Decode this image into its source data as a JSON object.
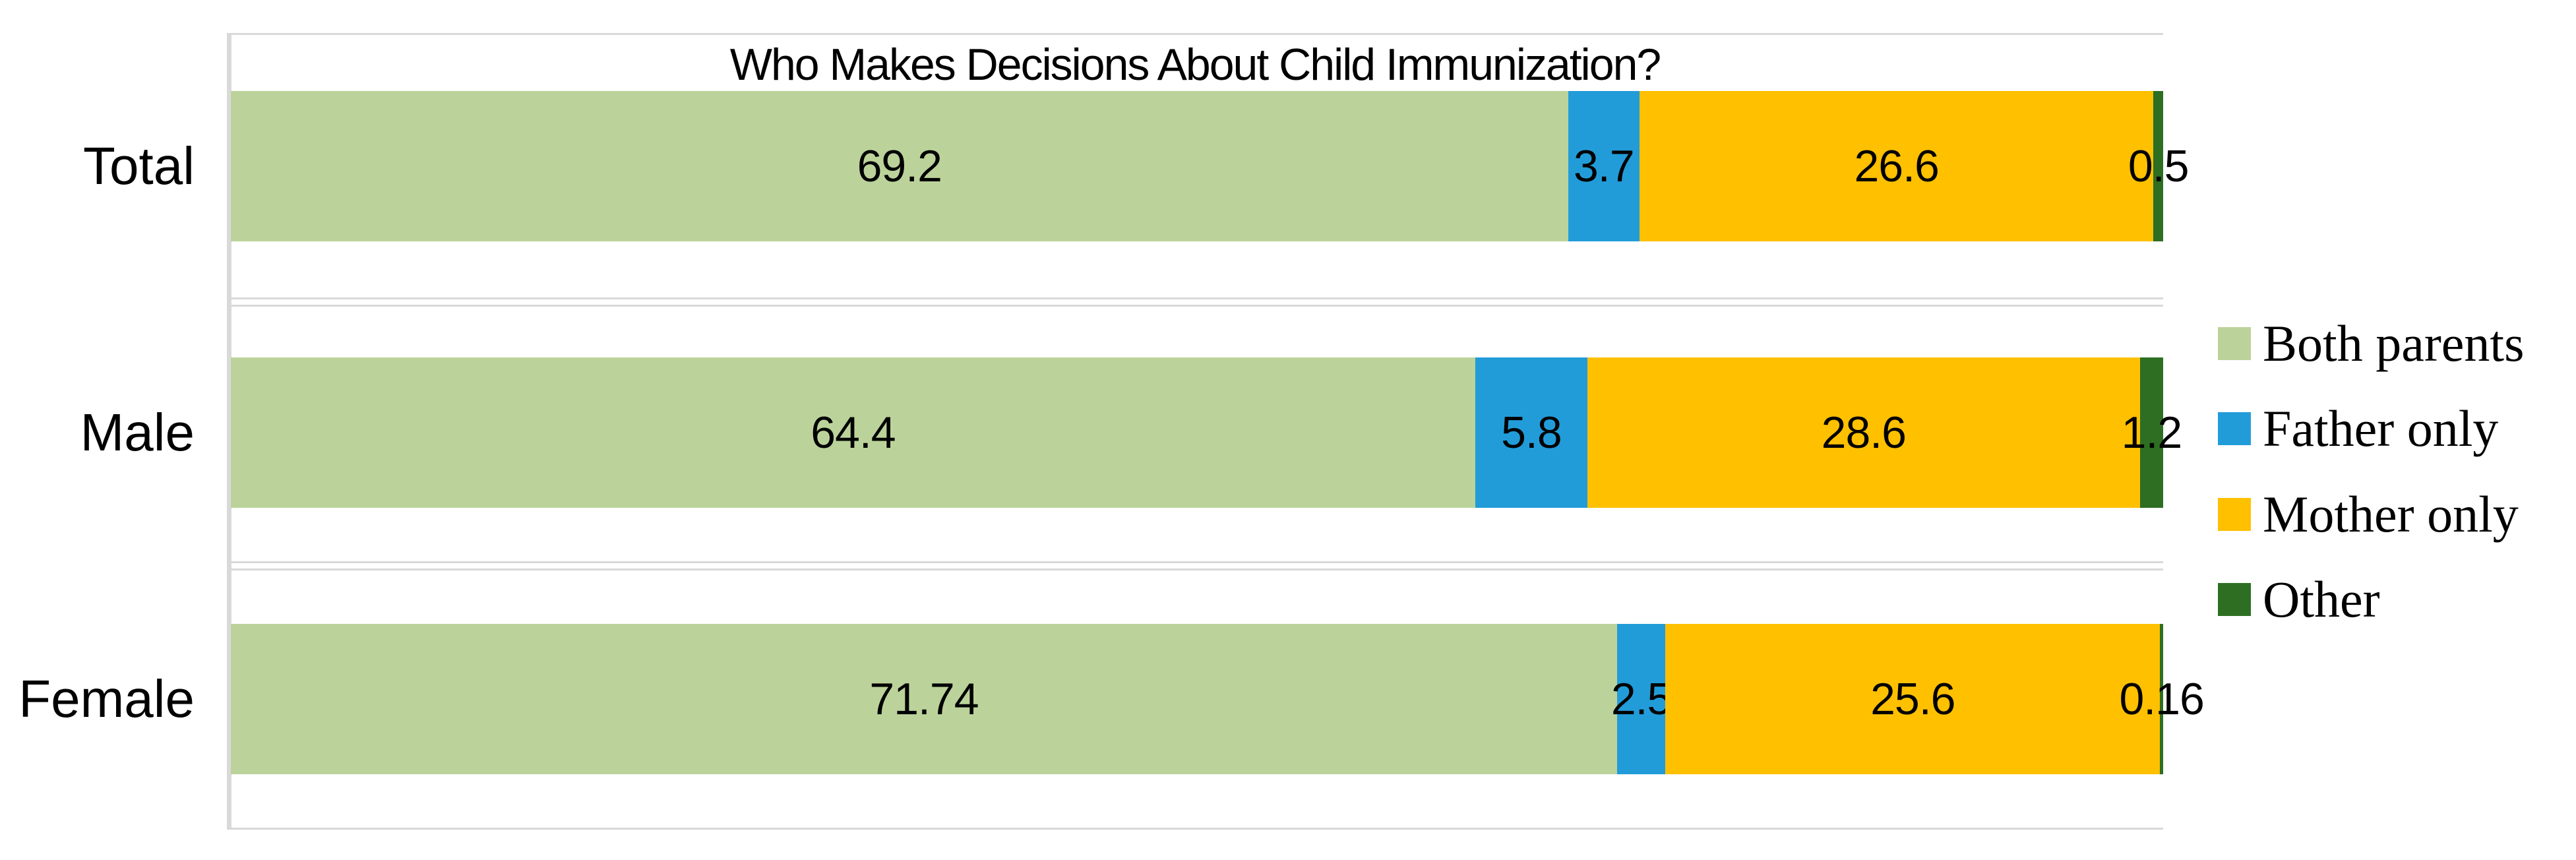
{
  "chart_data": {
    "type": "bar",
    "variant": "horizontal-stacked-100pct",
    "title": "Who Makes Decisions About Child Immunization?",
    "categories": [
      "Total",
      "Male",
      "Female"
    ],
    "series": [
      {
        "name": "Both parents",
        "color": "#bbd39a",
        "values": [
          69.2,
          64.4,
          71.74
        ],
        "labels": [
          "69.2",
          "64.4",
          "71.74"
        ]
      },
      {
        "name": "Father only",
        "color": "#229cd9",
        "values": [
          3.7,
          5.8,
          2.5
        ],
        "labels": [
          "3.7",
          "5.8",
          "2.5"
        ]
      },
      {
        "name": "Mother only",
        "color": "#ffc000",
        "values": [
          26.6,
          28.6,
          25.6
        ],
        "labels": [
          "26.6",
          "28.6",
          "25.6"
        ]
      },
      {
        "name": "Other",
        "color": "#2d6e23",
        "values": [
          0.5,
          1.2,
          0.16
        ],
        "labels": [
          "0.5",
          "1.2",
          "0.16"
        ]
      }
    ],
    "xlabel": "",
    "ylabel": "",
    "x_axis": {
      "min": 0,
      "max": 100,
      "unit": "percent",
      "tick_labels_visible": false
    },
    "data_labels": {
      "visible": true,
      "position": "center",
      "color": "#000000"
    },
    "legend": {
      "position": "right",
      "entries": [
        "Both parents",
        "Father only",
        "Mother only",
        "Other"
      ]
    },
    "gridlines": {
      "row_borders": true,
      "color": "#d9d9d9"
    },
    "background": "#ffffff"
  }
}
